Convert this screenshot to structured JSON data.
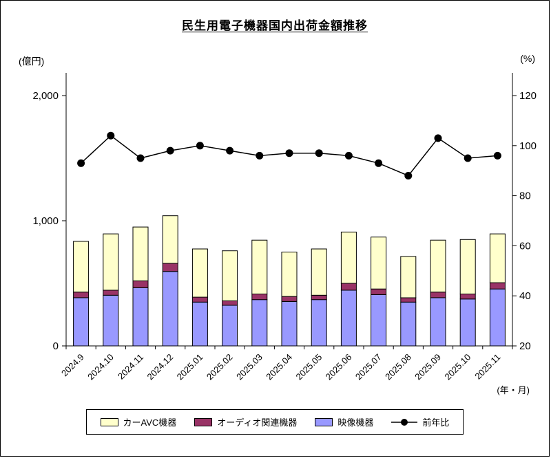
{
  "title": "民生用電子機器国内出荷金額推移",
  "left_axis_unit": "(億円)",
  "right_axis_unit": "(%)",
  "x_axis_unit": "(年・月)",
  "colors": {
    "car_avc": "#FFFFCC",
    "audio": "#993366",
    "video": "#9999FF",
    "line": "#000000",
    "axis": "#000000",
    "background": "#FFFFFF"
  },
  "legend": {
    "car_avc": "カーAVC機器",
    "audio": "オーディオ関連機器",
    "video": "映像機器",
    "yoy": "前年比"
  },
  "chart_data": {
    "type": "bar+line",
    "title": "民生用電子機器国内出荷金額推移",
    "categories": [
      "2024.9",
      "2024.10",
      "2024.11",
      "2024.12",
      "2025.01",
      "2025.02",
      "2025.03",
      "2025.04",
      "2025.05",
      "2025.06",
      "2025.07",
      "2025.08",
      "2025.09",
      "2025.10",
      "2025.11"
    ],
    "series": [
      {
        "key": "video",
        "name": "映像機器",
        "type": "bar",
        "axis": "left",
        "color": "#9999FF",
        "values": [
          385,
          405,
          465,
          595,
          350,
          325,
          370,
          355,
          370,
          445,
          410,
          350,
          385,
          375,
          455
        ]
      },
      {
        "key": "audio",
        "name": "オーディオ関連機器",
        "type": "bar",
        "axis": "left",
        "color": "#993366",
        "values": [
          45,
          40,
          55,
          65,
          40,
          35,
          45,
          40,
          35,
          55,
          45,
          35,
          45,
          40,
          50
        ]
      },
      {
        "key": "car_avc",
        "name": "カーAVC機器",
        "type": "bar",
        "axis": "left",
        "color": "#FFFFCC",
        "values": [
          405,
          450,
          430,
          380,
          385,
          400,
          430,
          355,
          370,
          410,
          415,
          330,
          415,
          435,
          390
        ]
      },
      {
        "key": "yoy",
        "name": "前年比",
        "type": "line",
        "axis": "right",
        "color": "#000000",
        "values": [
          93,
          104,
          95,
          98,
          100,
          98,
          96,
          97,
          97,
          96,
          93,
          88,
          103,
          95,
          96
        ]
      }
    ],
    "left_axis": {
      "label": "(億円)",
      "ticks": [
        0,
        1000,
        2000
      ],
      "labels": [
        "0",
        "1,000",
        "2,000"
      ],
      "min": 0,
      "max": 2200
    },
    "right_axis": {
      "label": "(%)",
      "ticks": [
        20,
        40,
        60,
        80,
        100,
        120
      ],
      "labels": [
        "20",
        "40",
        "60",
        "80",
        "100",
        "120"
      ],
      "min": 20,
      "max": 124
    },
    "x_axis": {
      "label": "(年・月)"
    },
    "legend_position": "bottom",
    "grid": false,
    "stacked": true
  }
}
